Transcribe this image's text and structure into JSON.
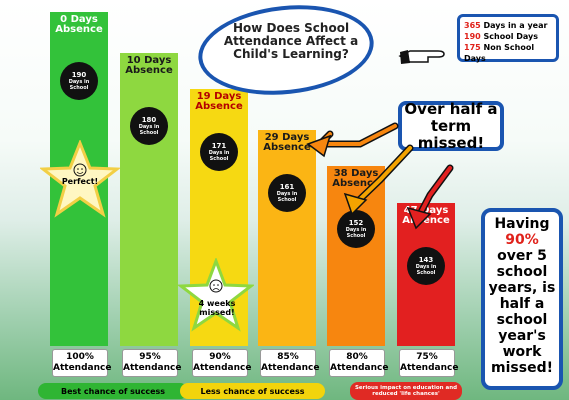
{
  "title": "How Does School Attendance Affect a Child's Learning?",
  "info_box": {
    "line1_num": "365",
    "line1_text": "Days in a year",
    "line2_num": "190",
    "line2_text": "School Days",
    "line3_num": "175",
    "line3_text": "Non School Days"
  },
  "over_half": "Over half a term missed!",
  "having_box": {
    "line1": "Having",
    "line2": "90%",
    "line3": "over 5 school years, is half a school year's work missed!"
  },
  "stars": {
    "perfect": "Perfect!",
    "four_weeks": "4 weeks missed!"
  },
  "categories_footer": [
    {
      "label": "Best  chance of success",
      "color": "#2fb533"
    },
    {
      "label": "Less chance of success",
      "color": "#f2d40c"
    },
    {
      "label": "Serious impact on education and reduced 'life chances'",
      "color": "#e02a24"
    }
  ],
  "colors": {
    "bar1": "#33c23a",
    "bar2": "#8ed840",
    "bar3": "#f6d912",
    "bar4": "#fbb514",
    "bar5": "#f7860f",
    "bar6": "#e22020",
    "accent_blue": "#1a55b0"
  },
  "chart_data": {
    "type": "bar",
    "categories": [
      "100% Attendance",
      "95% Attendance",
      "90% Attendance",
      "85% Attendance",
      "80% Attendance",
      "75% Attendance"
    ],
    "values_days_absence": [
      0,
      10,
      19,
      29,
      38,
      47
    ],
    "values_days_in_school": [
      190,
      180,
      171,
      161,
      152,
      143
    ],
    "bar_labels": [
      "0 Days Absence",
      "10 Days Absence",
      "19 Days Absence",
      "29 Days Absence",
      "38 Days Absence",
      "47 Days Absence"
    ],
    "attendance_labels": [
      {
        "pct": "100%",
        "word": "Attendance"
      },
      {
        "pct": "95%",
        "word": "Attendance"
      },
      {
        "pct": "90%",
        "word": "Attendance"
      },
      {
        "pct": "85%",
        "word": "Attendance"
      },
      {
        "pct": "80%",
        "word": "Attendance"
      },
      {
        "pct": "75%",
        "word": "Attendance"
      }
    ],
    "in_school_word": "Days in School"
  }
}
